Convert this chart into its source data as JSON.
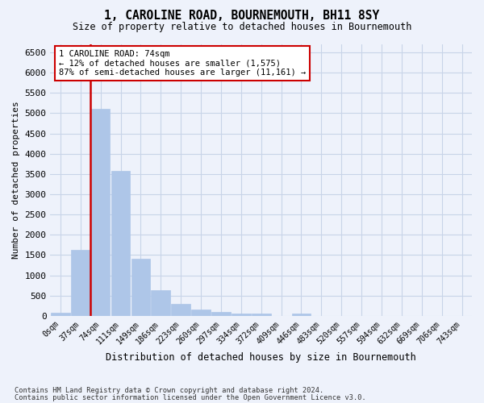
{
  "title": "1, CAROLINE ROAD, BOURNEMOUTH, BH11 8SY",
  "subtitle": "Size of property relative to detached houses in Bournemouth",
  "xlabel": "Distribution of detached houses by size in Bournemouth",
  "ylabel": "Number of detached properties",
  "footnote1": "Contains HM Land Registry data © Crown copyright and database right 2024.",
  "footnote2": "Contains public sector information licensed under the Open Government Licence v3.0.",
  "property_label": "1 CAROLINE ROAD: 74sqm",
  "smaller_pct": "← 12% of detached houses are smaller (1,575)",
  "larger_pct": "87% of semi-detached houses are larger (11,161) →",
  "property_size_sqm": 74,
  "bin_labels": [
    "0sqm",
    "37sqm",
    "74sqm",
    "111sqm",
    "149sqm",
    "186sqm",
    "223sqm",
    "260sqm",
    "297sqm",
    "334sqm",
    "372sqm",
    "409sqm",
    "446sqm",
    "483sqm",
    "520sqm",
    "557sqm",
    "594sqm",
    "632sqm",
    "669sqm",
    "706sqm",
    "743sqm"
  ],
  "bar_values": [
    75,
    1625,
    5100,
    3575,
    1400,
    625,
    300,
    150,
    90,
    50,
    50,
    0,
    50,
    0,
    0,
    0,
    0,
    0,
    0,
    0,
    0
  ],
  "bar_color": "#aec6e8",
  "grid_color": "#c8d4e8",
  "background_color": "#eef2fb",
  "ylim": [
    0,
    6700
  ],
  "yticks": [
    0,
    500,
    1000,
    1500,
    2000,
    2500,
    3000,
    3500,
    4000,
    4500,
    5000,
    5500,
    6000,
    6500
  ],
  "annotation_box_facecolor": "#ffffff",
  "annotation_box_edgecolor": "#cc0000",
  "vline_color": "#cc0000",
  "vline_x_index": 2
}
